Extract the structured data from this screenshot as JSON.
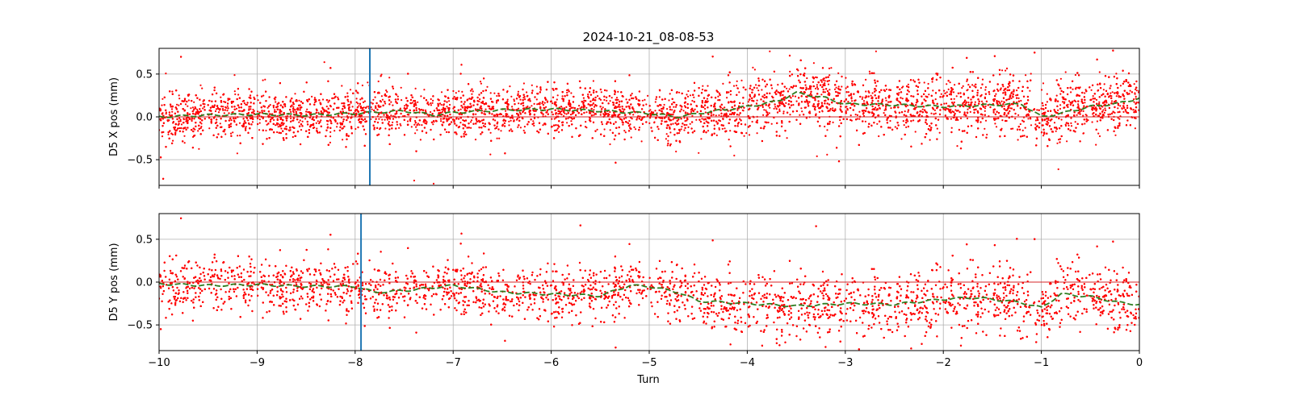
{
  "chart_data": {
    "type": "scatter",
    "title": "2024-10-21_08-08-53",
    "xlabel": "Turn",
    "xlim": [
      -10,
      0
    ],
    "xticks": [
      -10,
      -9,
      -8,
      -7,
      -6,
      -5,
      -4,
      -3,
      -2,
      -1,
      0
    ],
    "xtick_labels": [
      "−10",
      "−9",
      "−8",
      "−7",
      "−6",
      "−5",
      "−4",
      "−3",
      "−2",
      "−1",
      "0"
    ],
    "grid": true,
    "colors": {
      "points": "#ff0000",
      "smooth": "#2e7d20",
      "marker_line": "#1f77b4",
      "zero_line": "#d62728"
    },
    "panels": [
      {
        "ylabel": "D5 X pos (mm)",
        "ylim": [
          -0.8,
          0.8
        ],
        "yticks": [
          -0.5,
          0.0,
          0.5
        ],
        "ytick_labels": [
          "−0.5",
          "0.0",
          "0.5"
        ],
        "zero_line": 0.0,
        "vertical_marker_x": -7.85,
        "series": [
          {
            "kind": "scatter_points",
            "mean_profile": {
              "x": [
                -10,
                -9.5,
                -9,
                -8.5,
                -8,
                -7.5,
                -7.2,
                -7,
                -6.5,
                -6,
                -5.5,
                -5,
                -4.7,
                -4.5,
                -4,
                -3.7,
                -3.5,
                -3.2,
                -3,
                -2.5,
                -2,
                -1.5,
                -1.2,
                -1,
                -0.8,
                -0.5,
                -0.2,
                0
              ],
              "y": [
                0.0,
                0.02,
                0.03,
                0.02,
                0.04,
                0.07,
                0.02,
                0.05,
                0.08,
                0.09,
                0.07,
                0.04,
                0.0,
                0.04,
                0.12,
                0.18,
                0.28,
                0.22,
                0.15,
                0.14,
                0.12,
                0.14,
                0.15,
                0.0,
                0.04,
                0.12,
                0.16,
                0.22
              ]
            },
            "spread": 0.17,
            "points_per_turn": 1300
          },
          {
            "kind": "smoothed_line",
            "x": [
              -10,
              -9.5,
              -9,
              -8.5,
              -8,
              -7.5,
              -7.2,
              -7,
              -6.5,
              -6,
              -5.5,
              -5,
              -4.7,
              -4.5,
              -4,
              -3.7,
              -3.5,
              -3.2,
              -3,
              -2.5,
              -2,
              -1.5,
              -1.2,
              -1,
              -0.8,
              -0.5,
              -0.2,
              0
            ],
            "y": [
              0.0,
              0.02,
              0.03,
              0.02,
              0.04,
              0.07,
              0.02,
              0.05,
              0.08,
              0.09,
              0.07,
              0.04,
              0.0,
              0.04,
              0.12,
              0.18,
              0.28,
              0.22,
              0.15,
              0.14,
              0.12,
              0.14,
              0.15,
              0.0,
              0.04,
              0.12,
              0.16,
              0.22
            ]
          }
        ]
      },
      {
        "ylabel": "D5 Y pos (mm)",
        "ylim": [
          -0.8,
          0.8
        ],
        "yticks": [
          -0.5,
          0.0,
          0.5
        ],
        "ytick_labels": [
          "−0.5",
          "0.0",
          "0.5"
        ],
        "zero_line": 0.0,
        "vertical_marker_x": -7.94,
        "series": [
          {
            "kind": "scatter_points",
            "mean_profile": {
              "x": [
                -10,
                -9.5,
                -9,
                -8.5,
                -8,
                -7.8,
                -7.5,
                -7,
                -6.5,
                -6,
                -5.5,
                -5.2,
                -5,
                -4.7,
                -4.5,
                -4,
                -3.5,
                -3,
                -2.5,
                -2,
                -1.7,
                -1.5,
                -1.2,
                -1,
                -0.8,
                -0.5,
                -0.2,
                0
              ],
              "y": [
                -0.02,
                -0.04,
                -0.03,
                -0.05,
                -0.05,
                -0.12,
                -0.1,
                -0.04,
                -0.12,
                -0.14,
                -0.16,
                -0.04,
                -0.05,
                -0.12,
                -0.22,
                -0.25,
                -0.28,
                -0.25,
                -0.26,
                -0.2,
                -0.18,
                -0.2,
                -0.24,
                -0.3,
                -0.14,
                -0.17,
                -0.24,
                -0.26
              ]
            },
            "spread": 0.19,
            "points_per_turn": 1300
          },
          {
            "kind": "smoothed_line",
            "x": [
              -10,
              -9.5,
              -9,
              -8.5,
              -8,
              -7.8,
              -7.5,
              -7,
              -6.5,
              -6,
              -5.5,
              -5.2,
              -5,
              -4.7,
              -4.5,
              -4,
              -3.5,
              -3,
              -2.5,
              -2,
              -1.7,
              -1.5,
              -1.2,
              -1,
              -0.8,
              -0.5,
              -0.2,
              0
            ],
            "y": [
              -0.02,
              -0.04,
              -0.03,
              -0.05,
              -0.05,
              -0.12,
              -0.1,
              -0.04,
              -0.12,
              -0.14,
              -0.16,
              -0.04,
              -0.05,
              -0.12,
              -0.22,
              -0.25,
              -0.28,
              -0.25,
              -0.26,
              -0.2,
              -0.18,
              -0.2,
              -0.24,
              -0.3,
              -0.14,
              -0.17,
              -0.24,
              -0.26
            ]
          }
        ]
      }
    ]
  }
}
